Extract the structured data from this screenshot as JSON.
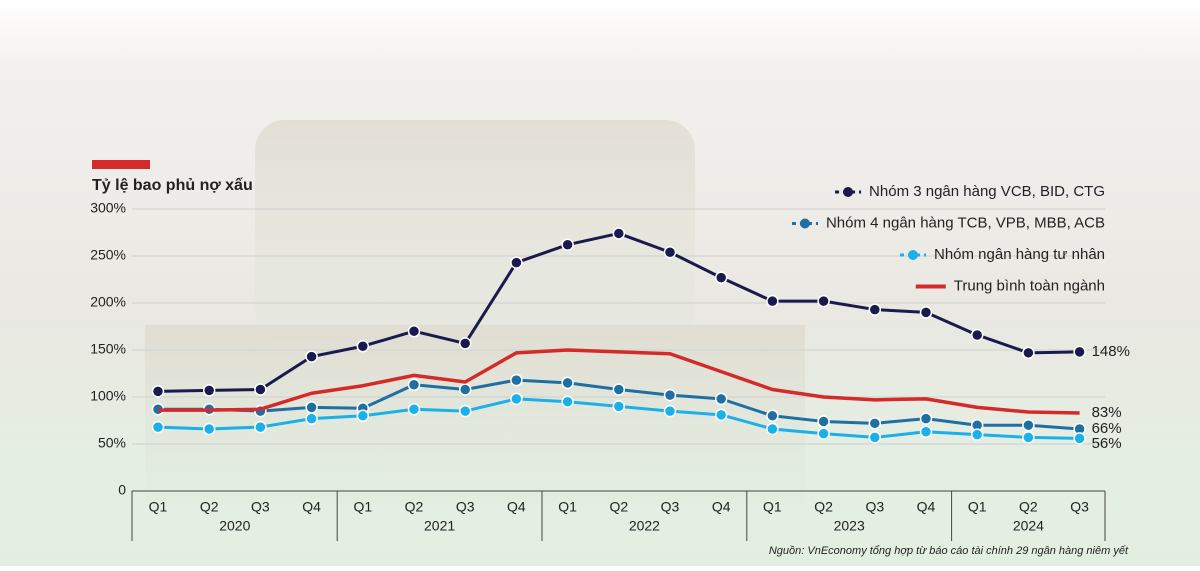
{
  "chart_data": {
    "type": "line",
    "title": "Tỷ lệ bao phủ nợ xấu",
    "source": "Nguồn: VnEconomy tổng hợp từ báo cáo tài chính 29 ngân hàng niêm yết",
    "categories": [
      "Q1",
      "Q2",
      "Q3",
      "Q4",
      "Q1",
      "Q2",
      "Q3",
      "Q4",
      "Q1",
      "Q2",
      "Q3",
      "Q4",
      "Q1",
      "Q2",
      "Q3",
      "Q4",
      "Q1",
      "Q2",
      "Q3"
    ],
    "year_groups": [
      {
        "label": "2020",
        "count": 4
      },
      {
        "label": "2021",
        "count": 4
      },
      {
        "label": "2022",
        "count": 4
      },
      {
        "label": "2023",
        "count": 4
      },
      {
        "label": "2024",
        "count": 3
      }
    ],
    "ylim": [
      0,
      300
    ],
    "yticks": [
      0,
      {
        "value": 50,
        "label": "50%"
      },
      {
        "value": 100,
        "label": "100%"
      },
      {
        "value": 150,
        "label": "150%"
      },
      {
        "value": 200,
        "label": "200%"
      },
      {
        "value": 250,
        "label": "250%"
      },
      {
        "value": 300,
        "label": "300%"
      }
    ],
    "grid": true,
    "legend": "top-right",
    "series": [
      {
        "name": "Nhóm 3 ngân hàng VCB, BID, CTG",
        "color": "#1b1a4e",
        "markers": true,
        "values": [
          106,
          107,
          108,
          143,
          154,
          170,
          157,
          243,
          262,
          274,
          254,
          227,
          202,
          202,
          193,
          190,
          166,
          147,
          148
        ],
        "value_labels": [
          null,
          null,
          null,
          null,
          null,
          null,
          null,
          null,
          null,
          null,
          null,
          null,
          null,
          null,
          null,
          null,
          null,
          null,
          "148%"
        ]
      },
      {
        "name": "Nhóm 4 ngân hàng TCB, VPB, MBB, ACB",
        "color": "#1f6fa3",
        "markers": true,
        "values": [
          87,
          87,
          85,
          89,
          88,
          113,
          108,
          118,
          115,
          108,
          102,
          98,
          80,
          74,
          72,
          77,
          70,
          70,
          66
        ],
        "value_labels": [
          null,
          null,
          null,
          null,
          null,
          null,
          null,
          null,
          null,
          null,
          null,
          null,
          null,
          null,
          null,
          null,
          null,
          null,
          "66%"
        ]
      },
      {
        "name": "Nhóm ngân hàng tư nhân",
        "color": "#1bb0ea",
        "markers": true,
        "values": [
          68,
          66,
          68,
          77,
          80,
          87,
          85,
          98,
          95,
          90,
          85,
          81,
          66,
          61,
          57,
          63,
          60,
          57,
          56
        ],
        "value_labels": [
          null,
          null,
          null,
          null,
          null,
          null,
          null,
          null,
          null,
          null,
          null,
          null,
          null,
          null,
          null,
          null,
          null,
          null,
          "56%"
        ]
      },
      {
        "name": "Trung bình toàn ngành",
        "color": "#d42a2a",
        "markers": false,
        "values": [
          86,
          86,
          87,
          104,
          112,
          123,
          116,
          147,
          150,
          148,
          146,
          127,
          108,
          100,
          97,
          98,
          89,
          84,
          83
        ],
        "value_labels": [
          null,
          null,
          null,
          null,
          null,
          null,
          null,
          null,
          null,
          null,
          null,
          null,
          null,
          null,
          null,
          null,
          null,
          null,
          "83%"
        ]
      }
    ]
  }
}
